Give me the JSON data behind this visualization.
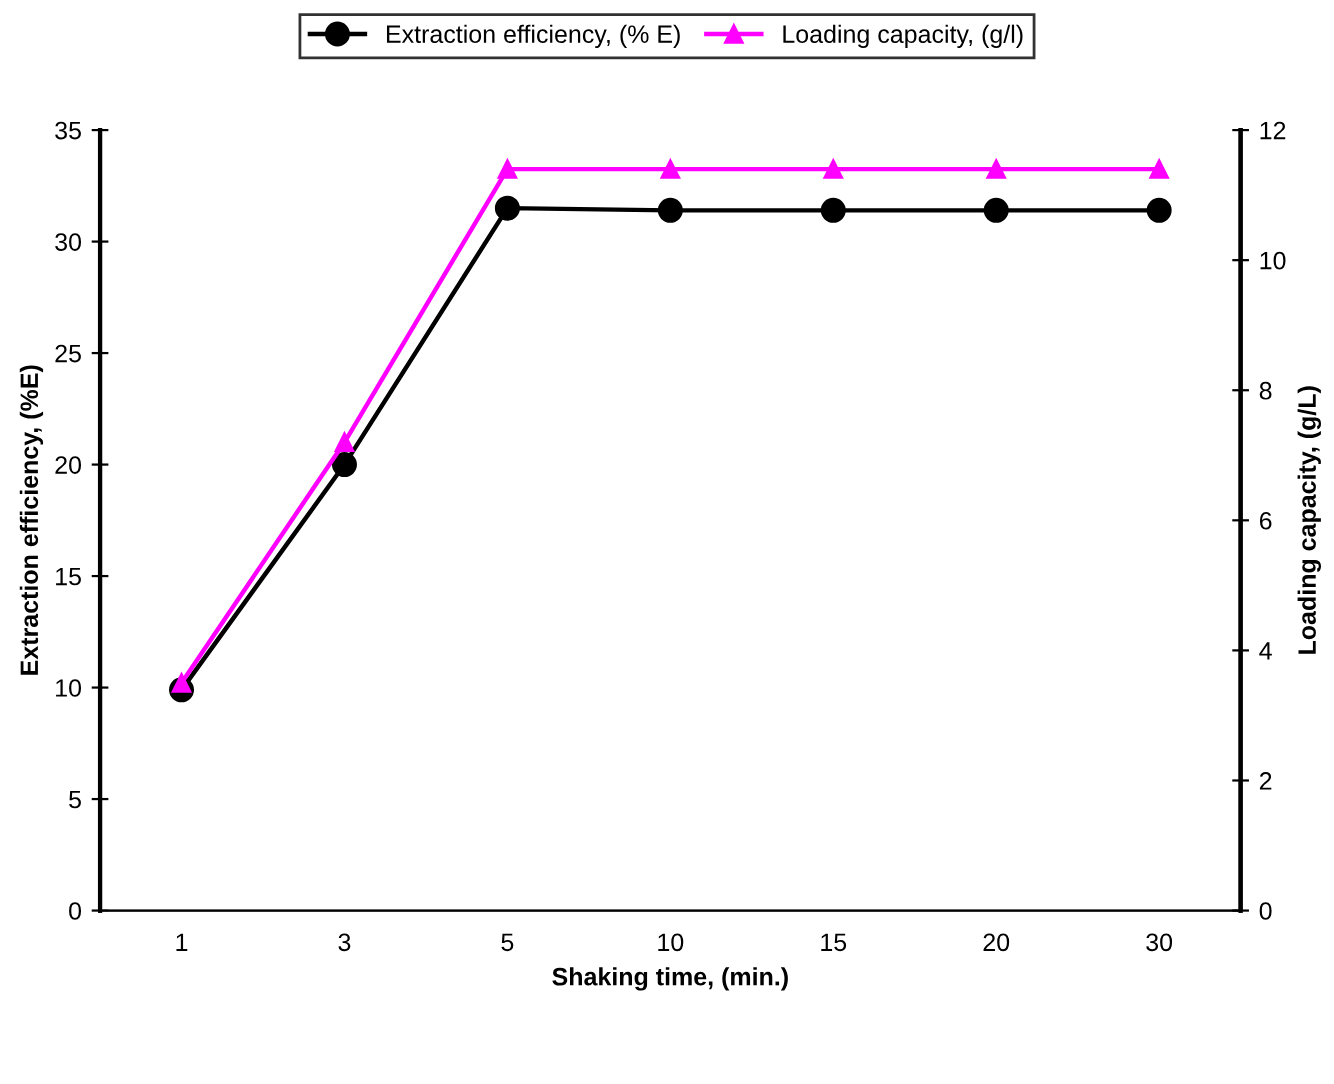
{
  "chart_data": {
    "type": "line",
    "xlabel": "Shaking time, (min.)",
    "ylabel": "Extraction efficiency, (%E)",
    "y2label": "Loading capacity, (g/L)",
    "categories": [
      "1",
      "3",
      "5",
      "10",
      "15",
      "20",
      "30"
    ],
    "series": [
      {
        "name": "Extraction efficiency, (% E)",
        "color": "#000000",
        "marker": "circle",
        "values": [
          9.9,
          20.0,
          31.5,
          31.4,
          31.4,
          31.4,
          31.4
        ]
      },
      {
        "name": "Loading capacity, (g/l)",
        "color": "#ff00ff",
        "marker": "triangle",
        "axis": "y2",
        "values": [
          3.5,
          7.2,
          11.4,
          11.4,
          11.4,
          11.4,
          11.4
        ]
      }
    ],
    "ylim": [
      0,
      35
    ],
    "yticks": [
      0,
      5,
      10,
      15,
      20,
      25,
      30,
      35
    ],
    "y2lim": [
      0,
      12
    ],
    "y2ticks": [
      0,
      2,
      4,
      6,
      8,
      10,
      12
    ],
    "grid": false,
    "legend": "top",
    "line_style": "solid"
  }
}
